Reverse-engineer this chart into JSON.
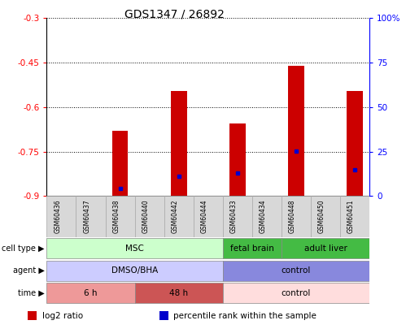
{
  "title": "GDS1347 / 26892",
  "samples": [
    "GSM60436",
    "GSM60437",
    "GSM60438",
    "GSM60440",
    "GSM60442",
    "GSM60444",
    "GSM60433",
    "GSM60434",
    "GSM60448",
    "GSM60450",
    "GSM60451"
  ],
  "log2_ratio": [
    null,
    null,
    -0.68,
    null,
    -0.545,
    null,
    -0.655,
    null,
    -0.46,
    null,
    -0.545
  ],
  "percentile_rank_left": [
    null,
    null,
    -0.873,
    null,
    -0.834,
    null,
    -0.822,
    null,
    -0.748,
    null,
    -0.81
  ],
  "ylim_left": [
    -0.9,
    -0.3
  ],
  "ylim_right": [
    0,
    100
  ],
  "yticks_left": [
    -0.9,
    -0.75,
    -0.6,
    -0.45,
    -0.3
  ],
  "yticks_right": [
    0,
    25,
    50,
    75,
    100
  ],
  "ytick_labels_left": [
    "-0.9",
    "-0.75",
    "-0.6",
    "-0.45",
    "-0.3"
  ],
  "ytick_labels_right": [
    "0",
    "25",
    "50",
    "75",
    "100%"
  ],
  "bar_color": "#cc0000",
  "pct_color": "#0000cc",
  "cell_type_segments": [
    {
      "text": "MSC",
      "start": 0,
      "end": 6,
      "color": "#ccffcc"
    },
    {
      "text": "fetal brain",
      "start": 6,
      "end": 8,
      "color": "#44bb44"
    },
    {
      "text": "adult liver",
      "start": 8,
      "end": 11,
      "color": "#44bb44"
    }
  ],
  "agent_segments": [
    {
      "text": "DMSO/BHA",
      "start": 0,
      "end": 6,
      "color": "#ccccff"
    },
    {
      "text": "control",
      "start": 6,
      "end": 11,
      "color": "#8888dd"
    }
  ],
  "time_segments": [
    {
      "text": "6 h",
      "start": 0,
      "end": 3,
      "color": "#ee9999"
    },
    {
      "text": "48 h",
      "start": 3,
      "end": 6,
      "color": "#cc5555"
    },
    {
      "text": "control",
      "start": 6,
      "end": 11,
      "color": "#ffdddd"
    }
  ],
  "annot_labels": [
    "cell type",
    "agent",
    "time"
  ],
  "legend_items": [
    {
      "color": "#cc0000",
      "label": "log2 ratio"
    },
    {
      "color": "#0000cc",
      "label": "percentile rank within the sample"
    }
  ],
  "bar_width": 0.55,
  "n_samples": 11
}
